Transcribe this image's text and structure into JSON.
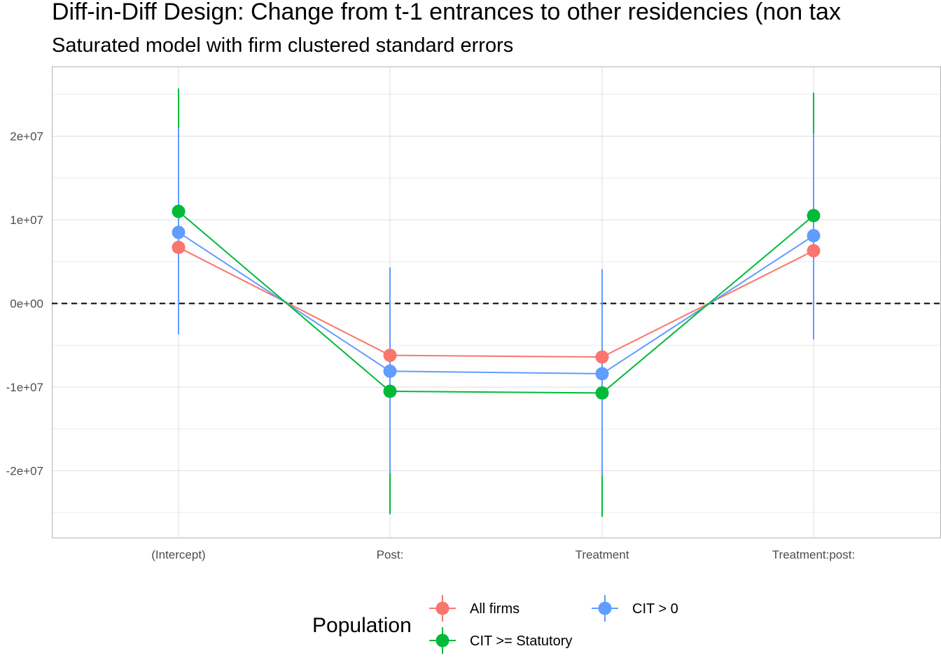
{
  "chart_data": {
    "type": "line",
    "title": "Diff-in-Diff Design: Change from t-1 entrances to other residencies (non tax",
    "subtitle": "Saturated model with firm clustered standard errors",
    "categories": [
      "(Intercept)",
      "Post:",
      "Treatment",
      "Treatment:post:"
    ],
    "ylim": [
      -28000000,
      28000000
    ],
    "y_ticks": [
      {
        "value": 20000000,
        "label": "2e+07"
      },
      {
        "value": 10000000,
        "label": "1e+07"
      },
      {
        "value": 0,
        "label": "0e+00"
      },
      {
        "value": -10000000,
        "label": "-1e+07"
      },
      {
        "value": -20000000,
        "label": "-2e+07"
      }
    ],
    "reference_line": 0,
    "grid": true,
    "legend": {
      "title": "Population",
      "position": "bottom"
    },
    "series": [
      {
        "name": "All firms",
        "color": "#F8766D",
        "values": [
          6700000,
          -6200000,
          -6400000,
          6300000
        ],
        "lower": [
          null,
          null,
          null,
          null
        ],
        "upper": [
          null,
          null,
          null,
          null
        ]
      },
      {
        "name": "CIT > 0",
        "color": "#619CFF",
        "values": [
          8500000,
          -8100000,
          -8400000,
          8100000
        ],
        "lower": [
          -3700000,
          -20300000,
          -20600000,
          -4300000
        ],
        "upper": [
          21000000,
          4300000,
          4100000,
          20300000
        ]
      },
      {
        "name": "CIT >= Statutory",
        "color": "#00BA38",
        "values": [
          11000000,
          -10500000,
          -10700000,
          10500000
        ],
        "lower": [
          null,
          -25200000,
          -25500000,
          null
        ],
        "upper": [
          25700000,
          null,
          null,
          25200000
        ]
      }
    ]
  }
}
